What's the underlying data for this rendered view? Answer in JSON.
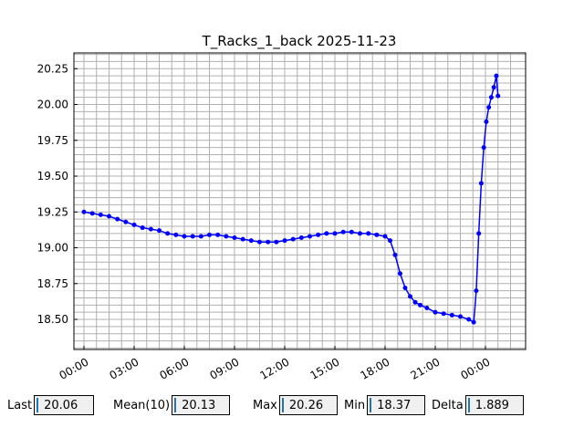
{
  "chart_data": {
    "type": "line",
    "title": "T_Racks_1_back 2025-11-23",
    "xlabel": "",
    "ylabel": "",
    "x_unit": "hours since 00:00 (time of day)",
    "xlim": [
      -0.6,
      26.4
    ],
    "ylim": [
      18.29,
      20.36
    ],
    "xticks": [
      0,
      3,
      6,
      9,
      12,
      15,
      18,
      21,
      24
    ],
    "xtick_labels": [
      "00:00",
      "03:00",
      "06:00",
      "09:00",
      "12:00",
      "15:00",
      "18:00",
      "21:00",
      "00:00"
    ],
    "yticks": [
      18.5,
      18.75,
      19.0,
      19.25,
      19.5,
      19.75,
      20.0,
      20.25
    ],
    "ytick_labels": [
      "18.50",
      "18.75",
      "19.00",
      "19.25",
      "19.50",
      "19.75",
      "20.00",
      "20.25"
    ],
    "grid": true,
    "series": [
      {
        "color": "#0000ff",
        "x": [
          0,
          0.5,
          1,
          1.5,
          2,
          2.5,
          3,
          3.5,
          4,
          4.5,
          5,
          5.5,
          6,
          6.5,
          7,
          7.5,
          8,
          8.5,
          9,
          9.5,
          10,
          10.5,
          11,
          11.5,
          12,
          12.5,
          13,
          13.5,
          14,
          14.5,
          15,
          15.5,
          16,
          16.5,
          17,
          17.5,
          18,
          18.3,
          18.6,
          18.9,
          19.2,
          19.5,
          19.8,
          20.1,
          20.5,
          21,
          21.5,
          22,
          22.5,
          23,
          23.3,
          23.45,
          23.6,
          23.75,
          23.9,
          24.05,
          24.2,
          24.35,
          24.5,
          24.65,
          24.75
        ],
        "values": [
          19.25,
          19.24,
          19.23,
          19.22,
          19.2,
          19.18,
          19.16,
          19.14,
          19.13,
          19.12,
          19.1,
          19.09,
          19.08,
          19.08,
          19.08,
          19.09,
          19.09,
          19.08,
          19.07,
          19.06,
          19.05,
          19.04,
          19.04,
          19.04,
          19.05,
          19.06,
          19.07,
          19.08,
          19.09,
          19.1,
          19.1,
          19.11,
          19.11,
          19.1,
          19.1,
          19.09,
          19.08,
          19.05,
          18.95,
          18.82,
          18.72,
          18.66,
          18.62,
          18.6,
          18.58,
          18.55,
          18.54,
          18.53,
          18.52,
          18.5,
          18.48,
          18.7,
          19.1,
          19.45,
          19.7,
          19.88,
          19.98,
          20.05,
          20.12,
          20.2,
          20.06
        ]
      }
    ]
  },
  "stats": {
    "last_label": "Last",
    "last_value": "20.06",
    "mean_label": "Mean(10)",
    "mean_value": "20.13",
    "max_label": "Max",
    "max_value": "20.26",
    "min_label": "Min",
    "min_value": "18.37",
    "delta_label": "Delta",
    "delta_value": "1.889"
  }
}
